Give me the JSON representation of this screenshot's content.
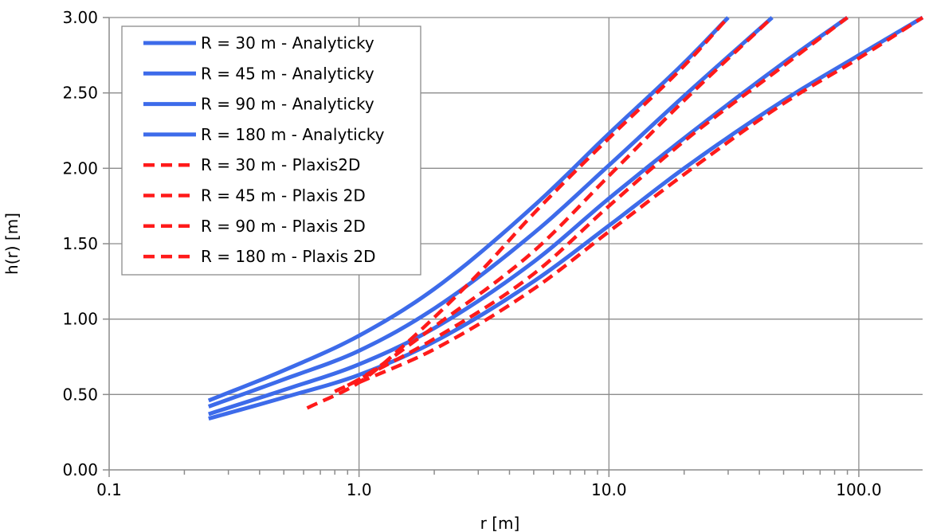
{
  "chart_data": {
    "type": "line",
    "x_scale": "log",
    "xlabel": "r [m]",
    "ylabel": "h(r) [m]",
    "xlim": [
      0.1,
      180
    ],
    "ylim": [
      0,
      3.0
    ],
    "x_major_ticks": [
      0.1,
      1,
      10,
      100
    ],
    "x_tick_labels": [
      "0.1",
      "1.0",
      "10.0",
      "100.0"
    ],
    "y_ticks": [
      0,
      0.5,
      1.0,
      1.5,
      2.0,
      2.5,
      3.0
    ],
    "y_tick_labels": [
      "0.00",
      "0.50",
      "1.00",
      "1.50",
      "2.00",
      "2.50",
      "3.00"
    ],
    "grid": true,
    "legend_position": "top-left",
    "series": [
      {
        "name": "R = 30 m - Analyticky",
        "color": "#3D6BEA",
        "dash": "solid",
        "x": [
          0.25,
          0.5,
          1.0,
          2.0,
          5.0,
          10.0,
          20.0,
          30.0
        ],
        "y": [
          0.46,
          0.66,
          0.89,
          1.2,
          1.75,
          2.23,
          2.7,
          3.0
        ]
      },
      {
        "name": "R = 45 m - Analyticky",
        "color": "#3D6BEA",
        "dash": "solid",
        "x": [
          0.25,
          0.5,
          1.0,
          2.0,
          5.0,
          10.0,
          20.0,
          45.0
        ],
        "y": [
          0.42,
          0.6,
          0.79,
          1.07,
          1.57,
          2.02,
          2.48,
          3.0
        ]
      },
      {
        "name": "R = 90 m - Analyticky",
        "color": "#3D6BEA",
        "dash": "solid",
        "x": [
          0.25,
          0.5,
          1.0,
          2.0,
          5.0,
          10.0,
          20.0,
          50.0,
          90.0
        ],
        "y": [
          0.37,
          0.53,
          0.7,
          0.94,
          1.38,
          1.8,
          2.2,
          2.7,
          3.0
        ]
      },
      {
        "name": "R = 180 m - Analyticky",
        "color": "#3D6BEA",
        "dash": "solid",
        "x": [
          0.25,
          0.5,
          1.0,
          2.0,
          5.0,
          10.0,
          20.0,
          50.0,
          100.0,
          180.0
        ],
        "y": [
          0.34,
          0.48,
          0.63,
          0.85,
          1.25,
          1.62,
          2.0,
          2.45,
          2.75,
          3.0
        ]
      },
      {
        "name": "R = 30 m - Plaxis2D",
        "color": "#FF1A1A",
        "dash": "dashed",
        "x": [
          0.62,
          1.0,
          1.5,
          3.0,
          5.0,
          10.0,
          20.0,
          30.0
        ],
        "y": [
          0.41,
          0.58,
          0.82,
          1.3,
          1.7,
          2.2,
          2.68,
          3.0
        ]
      },
      {
        "name": "R = 45 m - Plaxis 2D",
        "color": "#FF1A1A",
        "dash": "dashed",
        "x": [
          0.8,
          1.0,
          2.0,
          5.0,
          10.0,
          20.0,
          45.0
        ],
        "y": [
          0.52,
          0.6,
          0.95,
          1.45,
          1.95,
          2.45,
          3.0
        ]
      },
      {
        "name": "R = 90 m - Plaxis 2D",
        "color": "#FF1A1A",
        "dash": "dashed",
        "x": [
          0.9,
          1.0,
          2.0,
          5.0,
          10.0,
          20.0,
          50.0,
          90.0
        ],
        "y": [
          0.56,
          0.6,
          0.87,
          1.3,
          1.75,
          2.18,
          2.68,
          3.0
        ]
      },
      {
        "name": "R = 180 m - Plaxis 2D",
        "color": "#FF1A1A",
        "dash": "dashed",
        "x": [
          1.0,
          2.0,
          5.0,
          10.0,
          20.0,
          50.0,
          100.0,
          180.0
        ],
        "y": [
          0.58,
          0.8,
          1.2,
          1.58,
          1.96,
          2.43,
          2.73,
          3.0
        ]
      }
    ]
  }
}
